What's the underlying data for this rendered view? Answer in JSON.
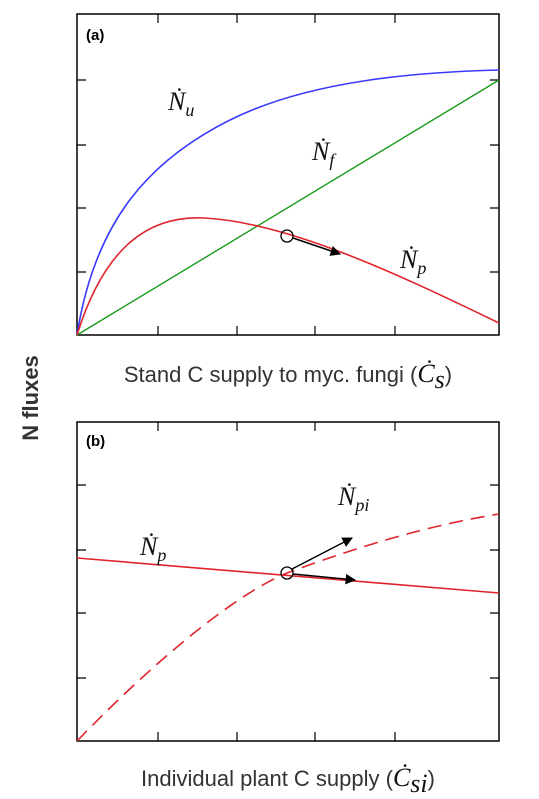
{
  "y_axis_label": "N fluxes",
  "panel_a": {
    "tag": "(a)",
    "x_axis_label": {
      "text": "Stand C supply to myc. fungi (",
      "symbol": "Ċ",
      "subscript": "s",
      "close": ")"
    },
    "curve_labels": [
      {
        "symbol": "Ṅ",
        "subscript": "u"
      },
      {
        "symbol": "Ṅ",
        "subscript": "f"
      },
      {
        "symbol": "Ṅ",
        "subscript": "p"
      }
    ]
  },
  "panel_b": {
    "tag": "(b)",
    "x_axis_label": {
      "text": "Individual plant C supply  (",
      "symbol": "Ċ",
      "subscript": "si",
      "close": ")"
    },
    "curve_labels": [
      {
        "symbol": "Ṅ",
        "subscript": "p"
      },
      {
        "symbol": "Ṅ",
        "subscript": "pi"
      }
    ]
  }
}
